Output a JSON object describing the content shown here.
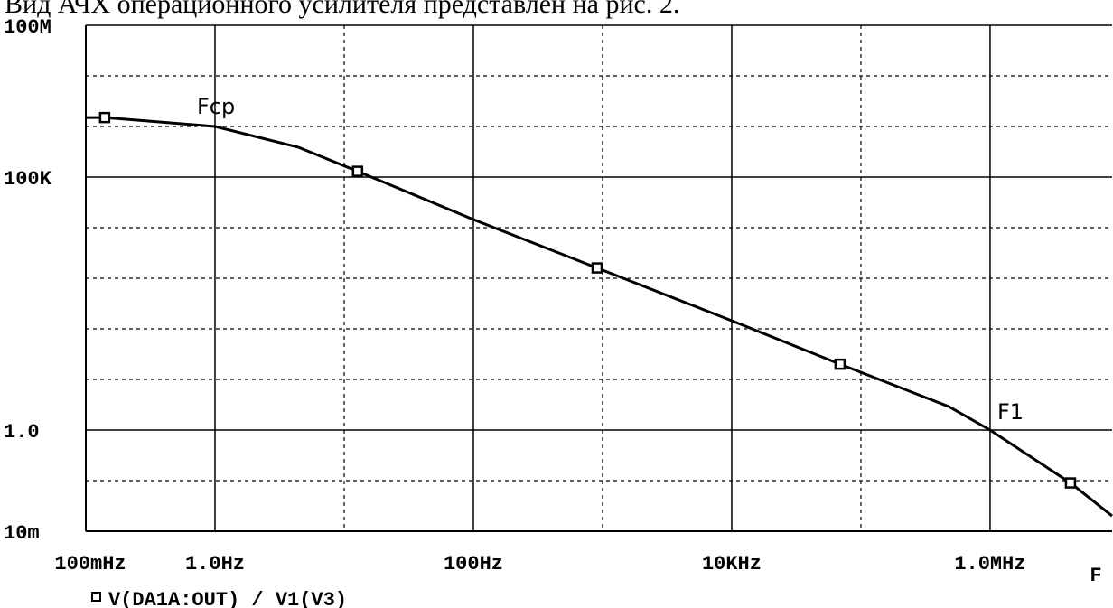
{
  "caption": "Вид АЧХ операционного усилителя представлен на рис. 2.",
  "chart_data": {
    "type": "line",
    "x_label": "F",
    "annotations": [
      {
        "text": "Fcp",
        "x": 1,
        "y": 1000000
      },
      {
        "text": "F1",
        "x": 1000000,
        "y": 1
      }
    ],
    "xlog": true,
    "ylog": true,
    "grid": true,
    "xlim": [
      0.1,
      8800000
    ],
    "ylim": [
      0.01,
      100000000
    ],
    "xticks": [
      {
        "value": 0.1,
        "label": "100mHz"
      },
      {
        "value": 1,
        "label": "1.0Hz"
      },
      {
        "value": 100,
        "label": "100Hz"
      },
      {
        "value": 10000,
        "label": "10KHz"
      },
      {
        "value": 1000000,
        "label": "1.0MHz"
      }
    ],
    "yticks": [
      {
        "value": 100000000,
        "label": "100M"
      },
      {
        "value": 100000,
        "label": "100K"
      },
      {
        "value": 1,
        "label": "1.0"
      },
      {
        "value": 0.01,
        "label": "10m"
      }
    ],
    "series": [
      {
        "name": "V(DA1A:OUT) / V1(V3)",
        "color": "#000000",
        "x": [
          0.1,
          0.14,
          1,
          4.4,
          12.7,
          100,
          908,
          10000,
          69000,
          480000,
          1000000,
          4190000,
          8800000
        ],
        "values": [
          1500000,
          1500000,
          1000000,
          390000,
          130000,
          14500,
          1600,
          145,
          20,
          2.9,
          1,
          0.09,
          0.02
        ],
        "markers": {
          "x": [
            0.14,
            12.7,
            908,
            69000,
            4190000
          ],
          "values": [
            1500000,
            130000,
            1600,
            20,
            0.09
          ]
        }
      }
    ]
  }
}
